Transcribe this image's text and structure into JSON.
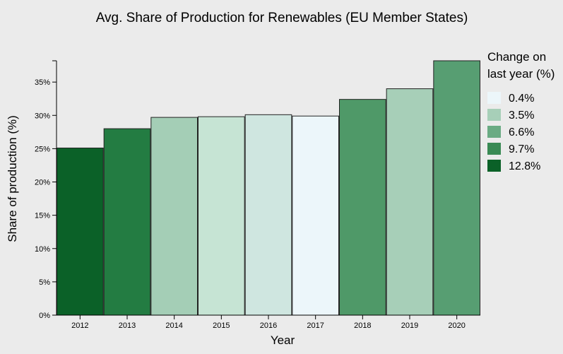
{
  "chart_data": {
    "type": "bar",
    "title": "Avg. Share of Production for Renewables (EU Member States)",
    "xlabel": "Year",
    "ylabel": "Share of production (%)",
    "categories": [
      "2012",
      "2013",
      "2014",
      "2015",
      "2016",
      "2017",
      "2018",
      "2019",
      "2020"
    ],
    "values": [
      25.1,
      28.0,
      29.7,
      29.8,
      30.1,
      29.9,
      32.4,
      34.0,
      38.2
    ],
    "bar_colors": [
      "#0b6128",
      "#237c42",
      "#a4ceb6",
      "#c6e4d4",
      "#cfe6e0",
      "#ecf6fa",
      "#4f9968",
      "#a7cfb8",
      "#579e72"
    ],
    "ylim": [
      0,
      38.2
    ],
    "yticks": [
      0,
      5,
      10,
      15,
      20,
      25,
      30,
      35
    ],
    "ytick_labels": [
      "0%",
      "5%",
      "10%",
      "15%",
      "20%",
      "25%",
      "30%",
      "35%"
    ],
    "grid": false,
    "legend": {
      "title_lines": [
        "Change on",
        "last year (%)"
      ],
      "placement": "right",
      "items": [
        {
          "label": "0.4%",
          "color": "#ecf6fa"
        },
        {
          "label": "3.5%",
          "color": "#a7cfb8"
        },
        {
          "label": "6.6%",
          "color": "#6aab83"
        },
        {
          "label": "9.7%",
          "color": "#398a54"
        },
        {
          "label": "12.8%",
          "color": "#0b6128"
        }
      ]
    }
  }
}
